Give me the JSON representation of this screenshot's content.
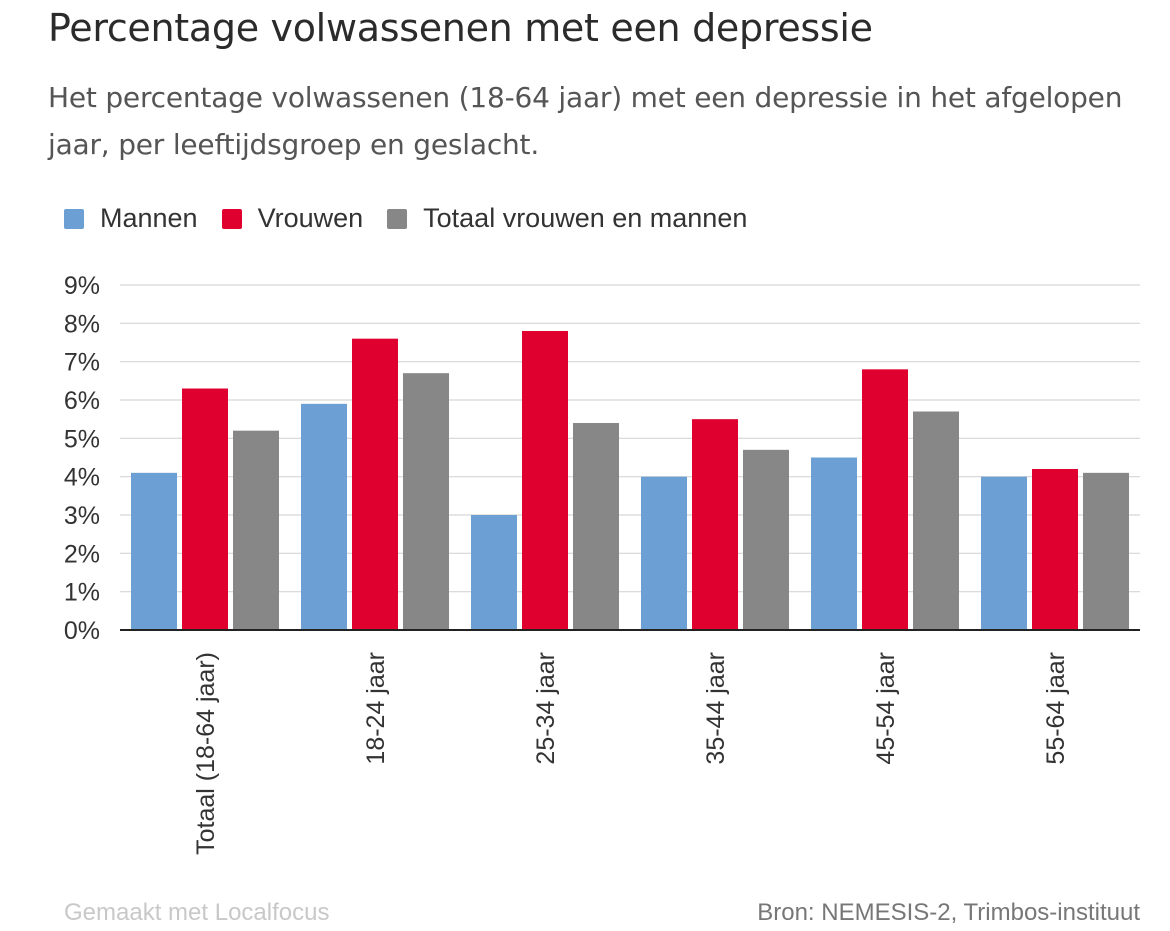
{
  "title": "Percentage volwassenen met een depressie",
  "subtitle": "Het percentage volwassenen (18-64 jaar) met een depressie in het afgelopen jaar, per leeftijdsgroep en geslacht.",
  "footer": {
    "made_with": "Gemaakt met Localfocus",
    "source": "Bron: NEMESIS-2, Trimbos-instituut"
  },
  "chart_data": {
    "type": "bar",
    "title": "Percentage volwassenen met een depressie",
    "xlabel": "",
    "ylabel": "",
    "ylim": [
      0,
      9
    ],
    "yticks": [
      "0%",
      "1%",
      "2%",
      "3%",
      "4%",
      "5%",
      "6%",
      "7%",
      "8%",
      "9%"
    ],
    "grid": true,
    "legend_position": "top-left",
    "categories": [
      "Totaal (18-64 jaar)",
      "18-24 jaar",
      "25-34 jaar",
      "35-44 jaar",
      "45-54 jaar",
      "55-64 jaar"
    ],
    "series": [
      {
        "name": "Mannen",
        "color": "#6ca0d4",
        "values": [
          4.1,
          5.9,
          3.0,
          4.0,
          4.5,
          4.0
        ]
      },
      {
        "name": "Vrouwen",
        "color": "#e0002f",
        "values": [
          6.3,
          7.6,
          7.8,
          5.5,
          6.8,
          4.2
        ]
      },
      {
        "name": "Totaal vrouwen en mannen",
        "color": "#878787",
        "values": [
          5.2,
          6.7,
          5.4,
          4.7,
          5.7,
          4.1
        ]
      }
    ]
  }
}
